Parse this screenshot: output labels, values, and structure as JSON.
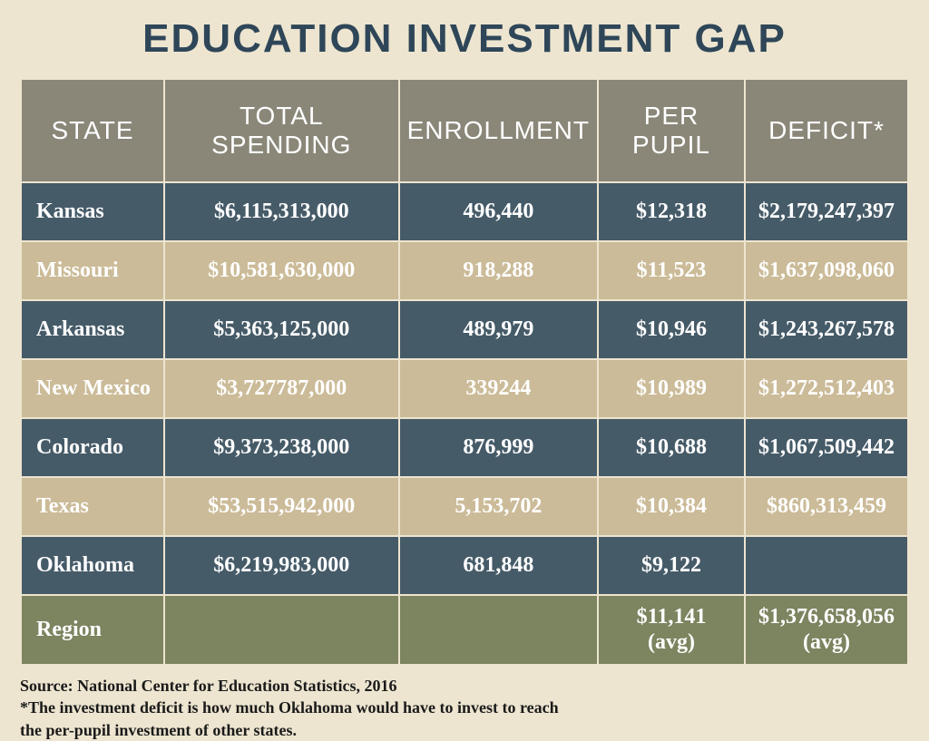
{
  "title": "EDUCATION INVESTMENT GAP",
  "table": {
    "type": "table",
    "columns": [
      "STATE",
      "TOTAL SPENDING",
      "ENROLLMENT",
      "PER PUPIL",
      "DEFICIT*"
    ],
    "header_bg": "#8a8779",
    "header_text_color": "#ffffff",
    "row_colors": {
      "dark": "#465b68",
      "light": "#cbbb98",
      "region": "#7c8460"
    },
    "cell_text_color": "#ffffff",
    "rows": [
      {
        "style": "dark",
        "cells": [
          "Kansas",
          "$6,115,313,000",
          "496,440",
          "$12,318",
          "$2,179,247,397"
        ]
      },
      {
        "style": "light",
        "cells": [
          "Missouri",
          "$10,581,630,000",
          "918,288",
          "$11,523",
          "$1,637,098,060"
        ]
      },
      {
        "style": "dark",
        "cells": [
          "Arkansas",
          "$5,363,125,000",
          "489,979",
          "$10,946",
          "$1,243,267,578"
        ]
      },
      {
        "style": "light",
        "cells": [
          "New Mexico",
          "$3,727787,000",
          "339244",
          "$10,989",
          "$1,272,512,403"
        ]
      },
      {
        "style": "dark",
        "cells": [
          "Colorado",
          "$9,373,238,000",
          "876,999",
          "$10,688",
          "$1,067,509,442"
        ]
      },
      {
        "style": "light",
        "cells": [
          "Texas",
          "$53,515,942,000",
          "5,153,702",
          "$10,384",
          "$860,313,459"
        ]
      },
      {
        "style": "dark",
        "cells": [
          "Oklahoma",
          "$6,219,983,000",
          "681,848",
          "$9,122",
          ""
        ]
      },
      {
        "style": "region",
        "cells": [
          "Region",
          "",
          "",
          "$11,141\n(avg)",
          "$1,376,658,056\n(avg)"
        ]
      }
    ]
  },
  "footnote": {
    "line1": "Source: National Center for Education Statistics, 2016",
    "line2": "*The investment deficit is how much Oklahoma would have to invest to reach",
    "line3": "the per-pupil investment of other states."
  },
  "background_color": "#ede5d0",
  "title_color": "#2e4658",
  "title_fontsize": 44
}
